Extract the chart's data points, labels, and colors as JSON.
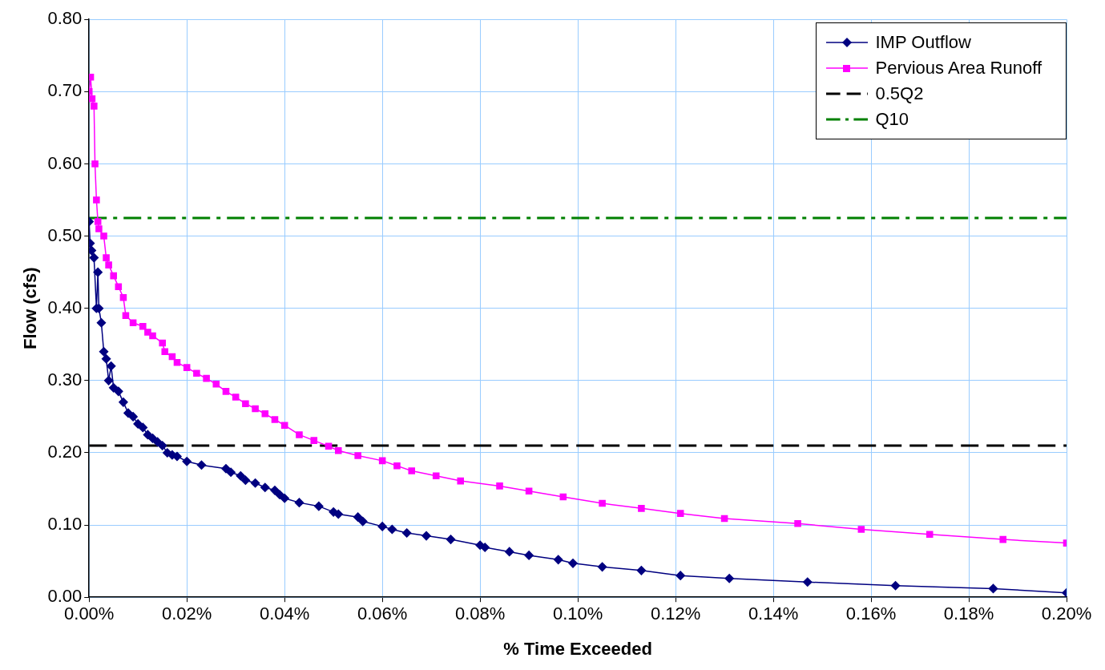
{
  "chart_data": {
    "type": "line",
    "xlabel": "% Time Exceeded",
    "ylabel": "Flow (cfs)",
    "xlim": [
      0,
      0.2
    ],
    "ylim": [
      0,
      0.8
    ],
    "xticks": [
      {
        "value": 0,
        "label": "0.00%"
      },
      {
        "value": 0.02,
        "label": "0.02%"
      },
      {
        "value": 0.04,
        "label": "0.04%"
      },
      {
        "value": 0.06,
        "label": "0.06%"
      },
      {
        "value": 0.08,
        "label": "0.08%"
      },
      {
        "value": 0.1,
        "label": "0.10%"
      },
      {
        "value": 0.12,
        "label": "0.12%"
      },
      {
        "value": 0.14,
        "label": "0.14%"
      },
      {
        "value": 0.16,
        "label": "0.16%"
      },
      {
        "value": 0.18,
        "label": "0.18%"
      },
      {
        "value": 0.2,
        "label": "0.20%"
      }
    ],
    "yticks": [
      {
        "value": 0,
        "label": "0.00"
      },
      {
        "value": 0.1,
        "label": "0.10"
      },
      {
        "value": 0.2,
        "label": "0.20"
      },
      {
        "value": 0.3,
        "label": "0.30"
      },
      {
        "value": 0.4,
        "label": "0.40"
      },
      {
        "value": 0.5,
        "label": "0.50"
      },
      {
        "value": 0.6,
        "label": "0.60"
      },
      {
        "value": 0.7,
        "label": "0.70"
      },
      {
        "value": 0.8,
        "label": "0.80"
      }
    ],
    "grid": true,
    "legend": "top right",
    "series": [
      {
        "name": "IMP Outflow",
        "color": "#000080",
        "marker": "diamond",
        "line_style": "solid",
        "x": [
          0,
          0.0002,
          0.0005,
          0.001,
          0.0015,
          0.0018,
          0.002,
          0.0025,
          0.003,
          0.0035,
          0.004,
          0.0045,
          0.005,
          0.006,
          0.007,
          0.008,
          0.009,
          0.01,
          0.011,
          0.012,
          0.013,
          0.014,
          0.015,
          0.016,
          0.017,
          0.018,
          0.02,
          0.023,
          0.028,
          0.029,
          0.031,
          0.032,
          0.034,
          0.036,
          0.038,
          0.039,
          0.04,
          0.043,
          0.047,
          0.05,
          0.051,
          0.055,
          0.056,
          0.06,
          0.062,
          0.065,
          0.069,
          0.074,
          0.08,
          0.081,
          0.086,
          0.09,
          0.096,
          0.099,
          0.105,
          0.113,
          0.121,
          0.131,
          0.147,
          0.165,
          0.185,
          0.2
        ],
        "values": [
          0.52,
          0.49,
          0.48,
          0.47,
          0.4,
          0.45,
          0.4,
          0.38,
          0.34,
          0.33,
          0.3,
          0.32,
          0.29,
          0.285,
          0.27,
          0.255,
          0.25,
          0.24,
          0.235,
          0.225,
          0.22,
          0.215,
          0.21,
          0.2,
          0.197,
          0.195,
          0.188,
          0.183,
          0.178,
          0.173,
          0.168,
          0.162,
          0.158,
          0.152,
          0.148,
          0.142,
          0.137,
          0.131,
          0.126,
          0.118,
          0.115,
          0.111,
          0.105,
          0.098,
          0.094,
          0.089,
          0.085,
          0.08,
          0.072,
          0.069,
          0.063,
          0.058,
          0.052,
          0.047,
          0.042,
          0.037,
          0.03,
          0.026,
          0.021,
          0.016,
          0.012,
          0.006
        ]
      },
      {
        "name": "Pervious Area Runoff",
        "color": "#ff00ff",
        "marker": "square",
        "line_style": "solid",
        "x": [
          0,
          0.0003,
          0.0006,
          0.001,
          0.0012,
          0.0015,
          0.0018,
          0.002,
          0.003,
          0.0035,
          0.004,
          0.005,
          0.006,
          0.007,
          0.0075,
          0.009,
          0.011,
          0.012,
          0.013,
          0.015,
          0.0155,
          0.017,
          0.018,
          0.02,
          0.022,
          0.024,
          0.026,
          0.028,
          0.03,
          0.032,
          0.034,
          0.036,
          0.038,
          0.04,
          0.043,
          0.046,
          0.049,
          0.051,
          0.055,
          0.06,
          0.063,
          0.066,
          0.071,
          0.076,
          0.084,
          0.09,
          0.097,
          0.105,
          0.113,
          0.121,
          0.13,
          0.145,
          0.158,
          0.172,
          0.187,
          0.2
        ],
        "values": [
          0.7,
          0.72,
          0.69,
          0.68,
          0.6,
          0.55,
          0.52,
          0.51,
          0.5,
          0.47,
          0.46,
          0.445,
          0.43,
          0.415,
          0.39,
          0.38,
          0.375,
          0.367,
          0.362,
          0.352,
          0.34,
          0.333,
          0.325,
          0.318,
          0.31,
          0.303,
          0.295,
          0.285,
          0.277,
          0.268,
          0.261,
          0.254,
          0.246,
          0.238,
          0.225,
          0.217,
          0.209,
          0.203,
          0.196,
          0.189,
          0.182,
          0.175,
          0.168,
          0.161,
          0.154,
          0.147,
          0.139,
          0.13,
          0.123,
          0.116,
          0.109,
          0.102,
          0.094,
          0.087,
          0.08,
          0.075
        ]
      },
      {
        "name": "0.5Q2",
        "color": "#000000",
        "marker": "none",
        "line_style": "dashed",
        "x": [
          0,
          0.2
        ],
        "values": [
          0.21,
          0.21
        ]
      },
      {
        "name": "Q10",
        "color": "#008000",
        "marker": "none",
        "line_style": "dashdot",
        "x": [
          0,
          0.2
        ],
        "values": [
          0.525,
          0.525
        ]
      }
    ]
  }
}
